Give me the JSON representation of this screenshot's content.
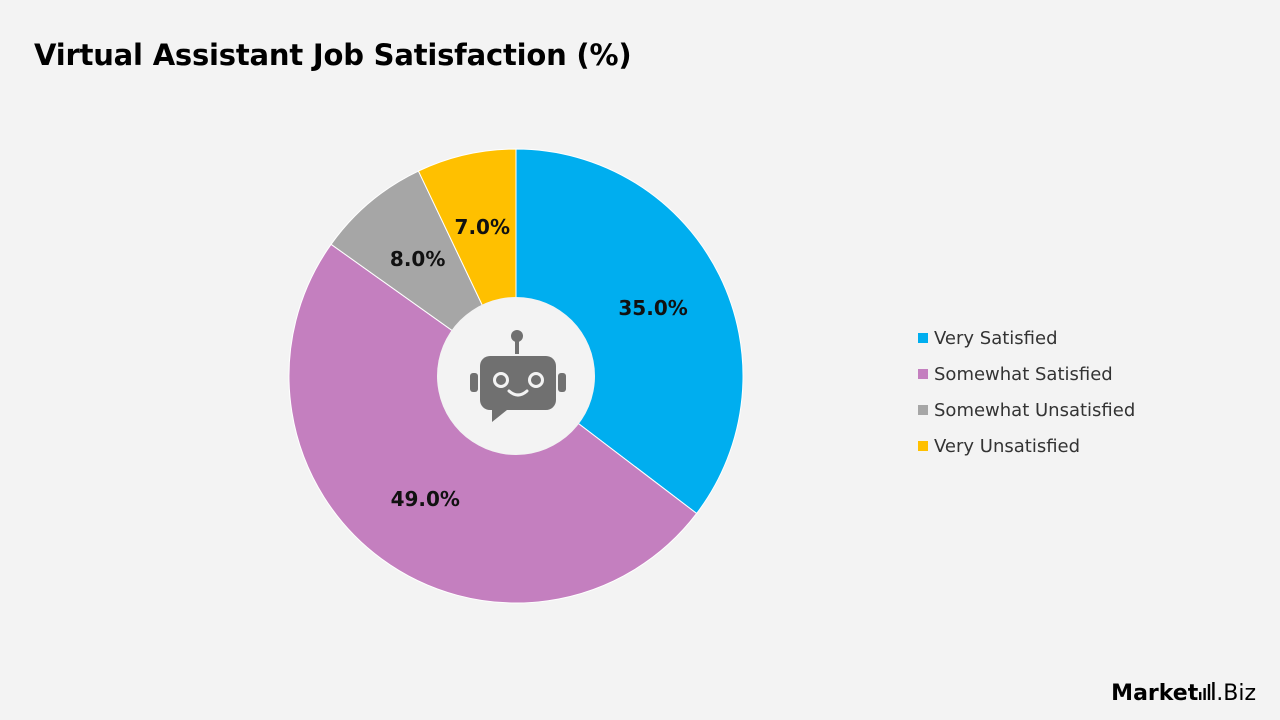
{
  "chart_data": {
    "type": "pie",
    "style": "donut",
    "title": "Virtual Assistant Job Satisfaction (%)",
    "categories": [
      "Very Satisfied",
      "Somewhat Satisfied",
      "Somewhat Unsatisfied",
      "Very Unsatisfied"
    ],
    "values": [
      35.0,
      49.0,
      8.0,
      7.0
    ],
    "value_labels": [
      "35.0%",
      "49.0%",
      "8.0%",
      "7.0%"
    ],
    "colors": [
      "#00aeef",
      "#c47fbf",
      "#a6a6a6",
      "#ffc000"
    ],
    "legend_position": "right",
    "center_icon": "robot-chat-icon"
  },
  "brand": {
    "part1": "Market",
    "part2": ".Biz",
    "icon": "bar-chart-icon"
  }
}
